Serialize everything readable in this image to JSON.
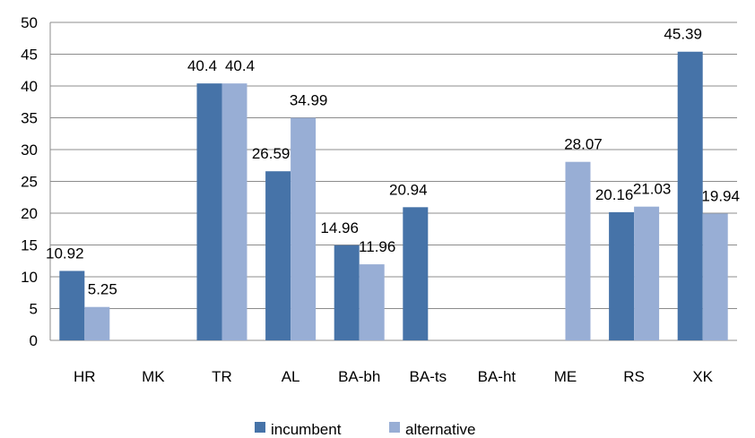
{
  "chart_data": {
    "type": "bar",
    "categories": [
      "HR",
      "MK",
      "TR",
      "AL",
      "BA-bh",
      "BA-ts",
      "BA-ht",
      "ME",
      "RS",
      "XK"
    ],
    "series": [
      {
        "name": "incumbent",
        "color": "#4673a8",
        "values": [
          10.92,
          null,
          40.4,
          26.59,
          14.96,
          20.94,
          null,
          null,
          20.16,
          45.39
        ],
        "labels": [
          "10.92",
          "",
          "40.4",
          "26.59",
          "14.96",
          "20.94",
          "",
          "",
          "20.16",
          "45.39"
        ]
      },
      {
        "name": "alternative",
        "color": "#98aed5",
        "values": [
          5.25,
          null,
          40.4,
          34.99,
          11.96,
          null,
          null,
          28.07,
          21.03,
          19.94
        ],
        "labels": [
          "5.25",
          "",
          "40.4",
          "34.99",
          "11.96",
          "",
          "",
          "28.07",
          "21.03",
          "19.94"
        ]
      }
    ],
    "ylim": [
      0,
      50
    ],
    "yticks": [
      "0",
      "5",
      "10",
      "15",
      "20",
      "25",
      "30",
      "35",
      "40",
      "45",
      "50"
    ],
    "grid": true,
    "legend_position": "bottom"
  }
}
